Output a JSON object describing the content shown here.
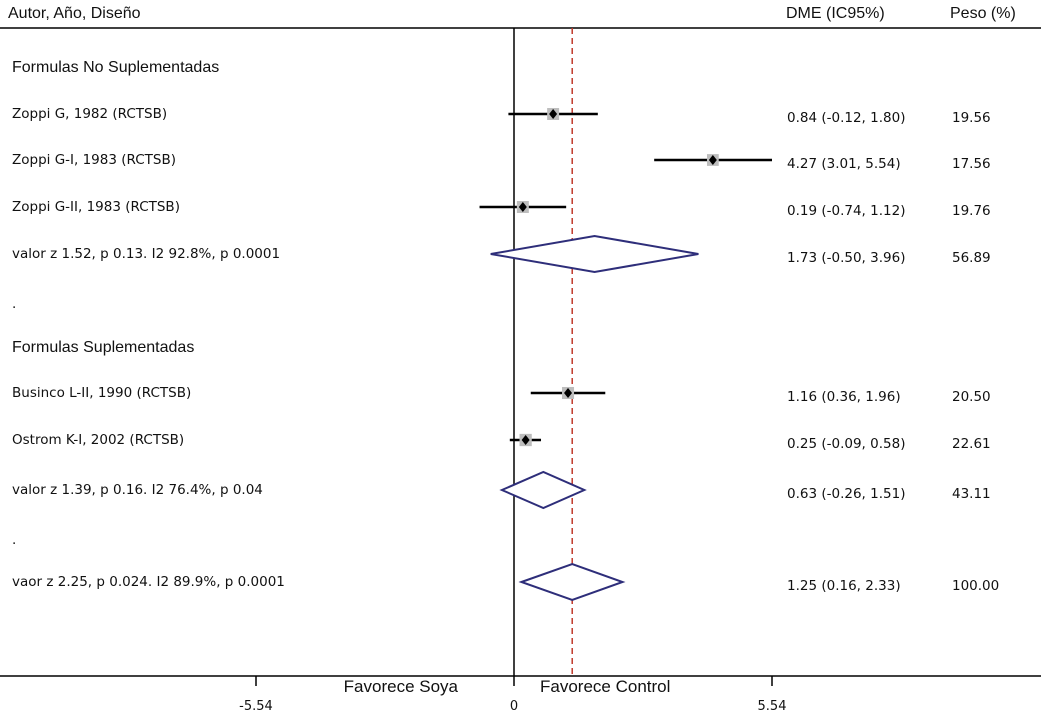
{
  "chart_data": {
    "type": "forest",
    "headers": {
      "study": "Autor, Año, Diseño",
      "effect": "DME (IC95%)",
      "weight": "Peso (%)"
    },
    "x_axis": {
      "ticks": [
        -5.54,
        0,
        5.54
      ],
      "tick_labels": [
        "-5.54",
        "0",
        "5.54"
      ],
      "left_label": "Favorece Soya",
      "right_label": "Favorece Control",
      "null_value": 0,
      "overall_effect_line": 1.25
    },
    "rows": [
      {
        "kind": "group",
        "label": "Formulas No Suplementadas"
      },
      {
        "kind": "study",
        "label": "Zoppi G, 1982 (RCTSB)",
        "est": 0.84,
        "lo": -0.12,
        "hi": 1.8,
        "ci_text": "0.84 (-0.12, 1.80)",
        "weight": "19.56"
      },
      {
        "kind": "study",
        "label": "Zoppi G-I, 1983 (RCTSB)",
        "est": 4.27,
        "lo": 3.01,
        "hi": 5.54,
        "ci_text": "4.27 (3.01, 5.54)",
        "weight": "17.56"
      },
      {
        "kind": "study",
        "label": "Zoppi G-II, 1983 (RCTSB)",
        "est": 0.19,
        "lo": -0.74,
        "hi": 1.12,
        "ci_text": "0.19 (-0.74, 1.12)",
        "weight": "19.76"
      },
      {
        "kind": "subtotal",
        "label": "valor z 1.52, p 0.13. I2 92.8%, p 0.0001",
        "est": 1.73,
        "lo": -0.5,
        "hi": 3.96,
        "ci_text": "1.73 (-0.50, 3.96)",
        "weight": "56.89"
      },
      {
        "kind": "spacer",
        "label": "."
      },
      {
        "kind": "group",
        "label": "Formulas Suplementadas"
      },
      {
        "kind": "study",
        "label": "Businco L-II, 1990 (RCTSB)",
        "est": 1.16,
        "lo": 0.36,
        "hi": 1.96,
        "ci_text": "1.16 (0.36, 1.96)",
        "weight": "20.50"
      },
      {
        "kind": "study",
        "label": "Ostrom K-I, 2002 (RCTSB)",
        "est": 0.25,
        "lo": -0.09,
        "hi": 0.58,
        "ci_text": "0.25 (-0.09, 0.58)",
        "weight": "22.61"
      },
      {
        "kind": "subtotal",
        "label": "valor z 1.39, p 0.16. I2 76.4%, p 0.04",
        "est": 0.63,
        "lo": -0.26,
        "hi": 1.51,
        "ci_text": "0.63 (-0.26, 1.51)",
        "weight": "43.11"
      },
      {
        "kind": "spacer",
        "label": "."
      },
      {
        "kind": "overall",
        "label": "vaor z 2.25, p 0.024. I2 89.9%, p 0.0001",
        "est": 1.25,
        "lo": 0.16,
        "hi": 2.33,
        "ci_text": "1.25 (0.16, 2.33)",
        "weight": "100.00"
      }
    ],
    "colors": {
      "diamond": "#2e2e7a",
      "ref_line": "#c0392b",
      "ci": "#000000",
      "square": "#bdbdbd"
    }
  }
}
